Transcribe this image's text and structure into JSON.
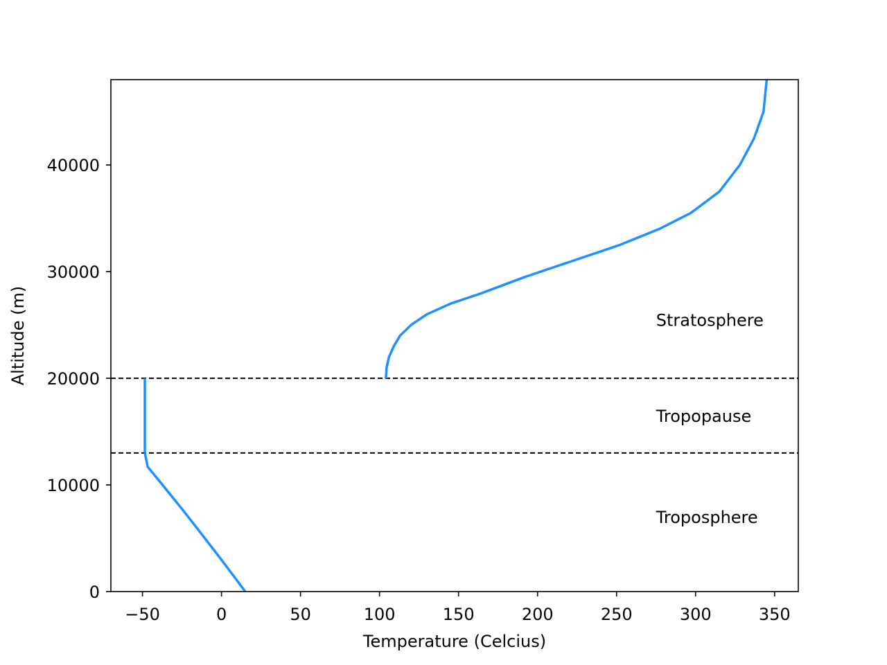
{
  "chart_data": {
    "type": "line",
    "title": "",
    "xlabel": "Temperature (Celcius)",
    "ylabel": "Altitude (m)",
    "xlim": [
      -70,
      365
    ],
    "ylim": [
      0,
      48000
    ],
    "xticks": [
      -50,
      0,
      50,
      100,
      150,
      200,
      250,
      300,
      350
    ],
    "xtick_labels": [
      "−50",
      "0",
      "50",
      "100",
      "150",
      "200",
      "250",
      "300",
      "350"
    ],
    "yticks": [
      0,
      10000,
      20000,
      30000,
      40000
    ],
    "ytick_labels": [
      "0",
      "10000",
      "20000",
      "30000",
      "40000"
    ],
    "grid": false,
    "legend": "none",
    "line_color": "#1e90ff",
    "series": [
      {
        "x": [
          15.04,
          8.5,
          1.9,
          -4.8,
          -11.6,
          -18.4,
          -25.3,
          -32.4,
          -39.5,
          -46.7,
          -48.5
        ],
        "y": [
          0,
          1300,
          2600,
          3900,
          5200,
          6500,
          7800,
          9100,
          10400,
          11700,
          13000
        ]
      },
      {
        "x": [
          -48.5,
          -48.5
        ],
        "y": [
          13000,
          20000
        ]
      },
      {
        "x": [
          104,
          104.5,
          106,
          109,
          113,
          120,
          130,
          145,
          165,
          192,
          222,
          252,
          277,
          297,
          315,
          328,
          337,
          343,
          345
        ],
        "y": [
          20000,
          21000,
          22000,
          23000,
          24000,
          25000,
          26000,
          27000,
          28000,
          29500,
          31000,
          32500,
          34000,
          35500,
          37500,
          40000,
          42500,
          45000,
          48000
        ]
      }
    ],
    "reference_lines": [
      {
        "y": 13000,
        "style": "dashed",
        "color": "#000000"
      },
      {
        "y": 20000,
        "style": "dashed",
        "color": "#000000"
      }
    ],
    "annotations": [
      {
        "text": "Stratosphere",
        "x": 275,
        "y": 25500
      },
      {
        "text": "Tropopause",
        "x": 275,
        "y": 16500
      },
      {
        "text": "Troposphere",
        "x": 275,
        "y": 7000
      }
    ]
  }
}
